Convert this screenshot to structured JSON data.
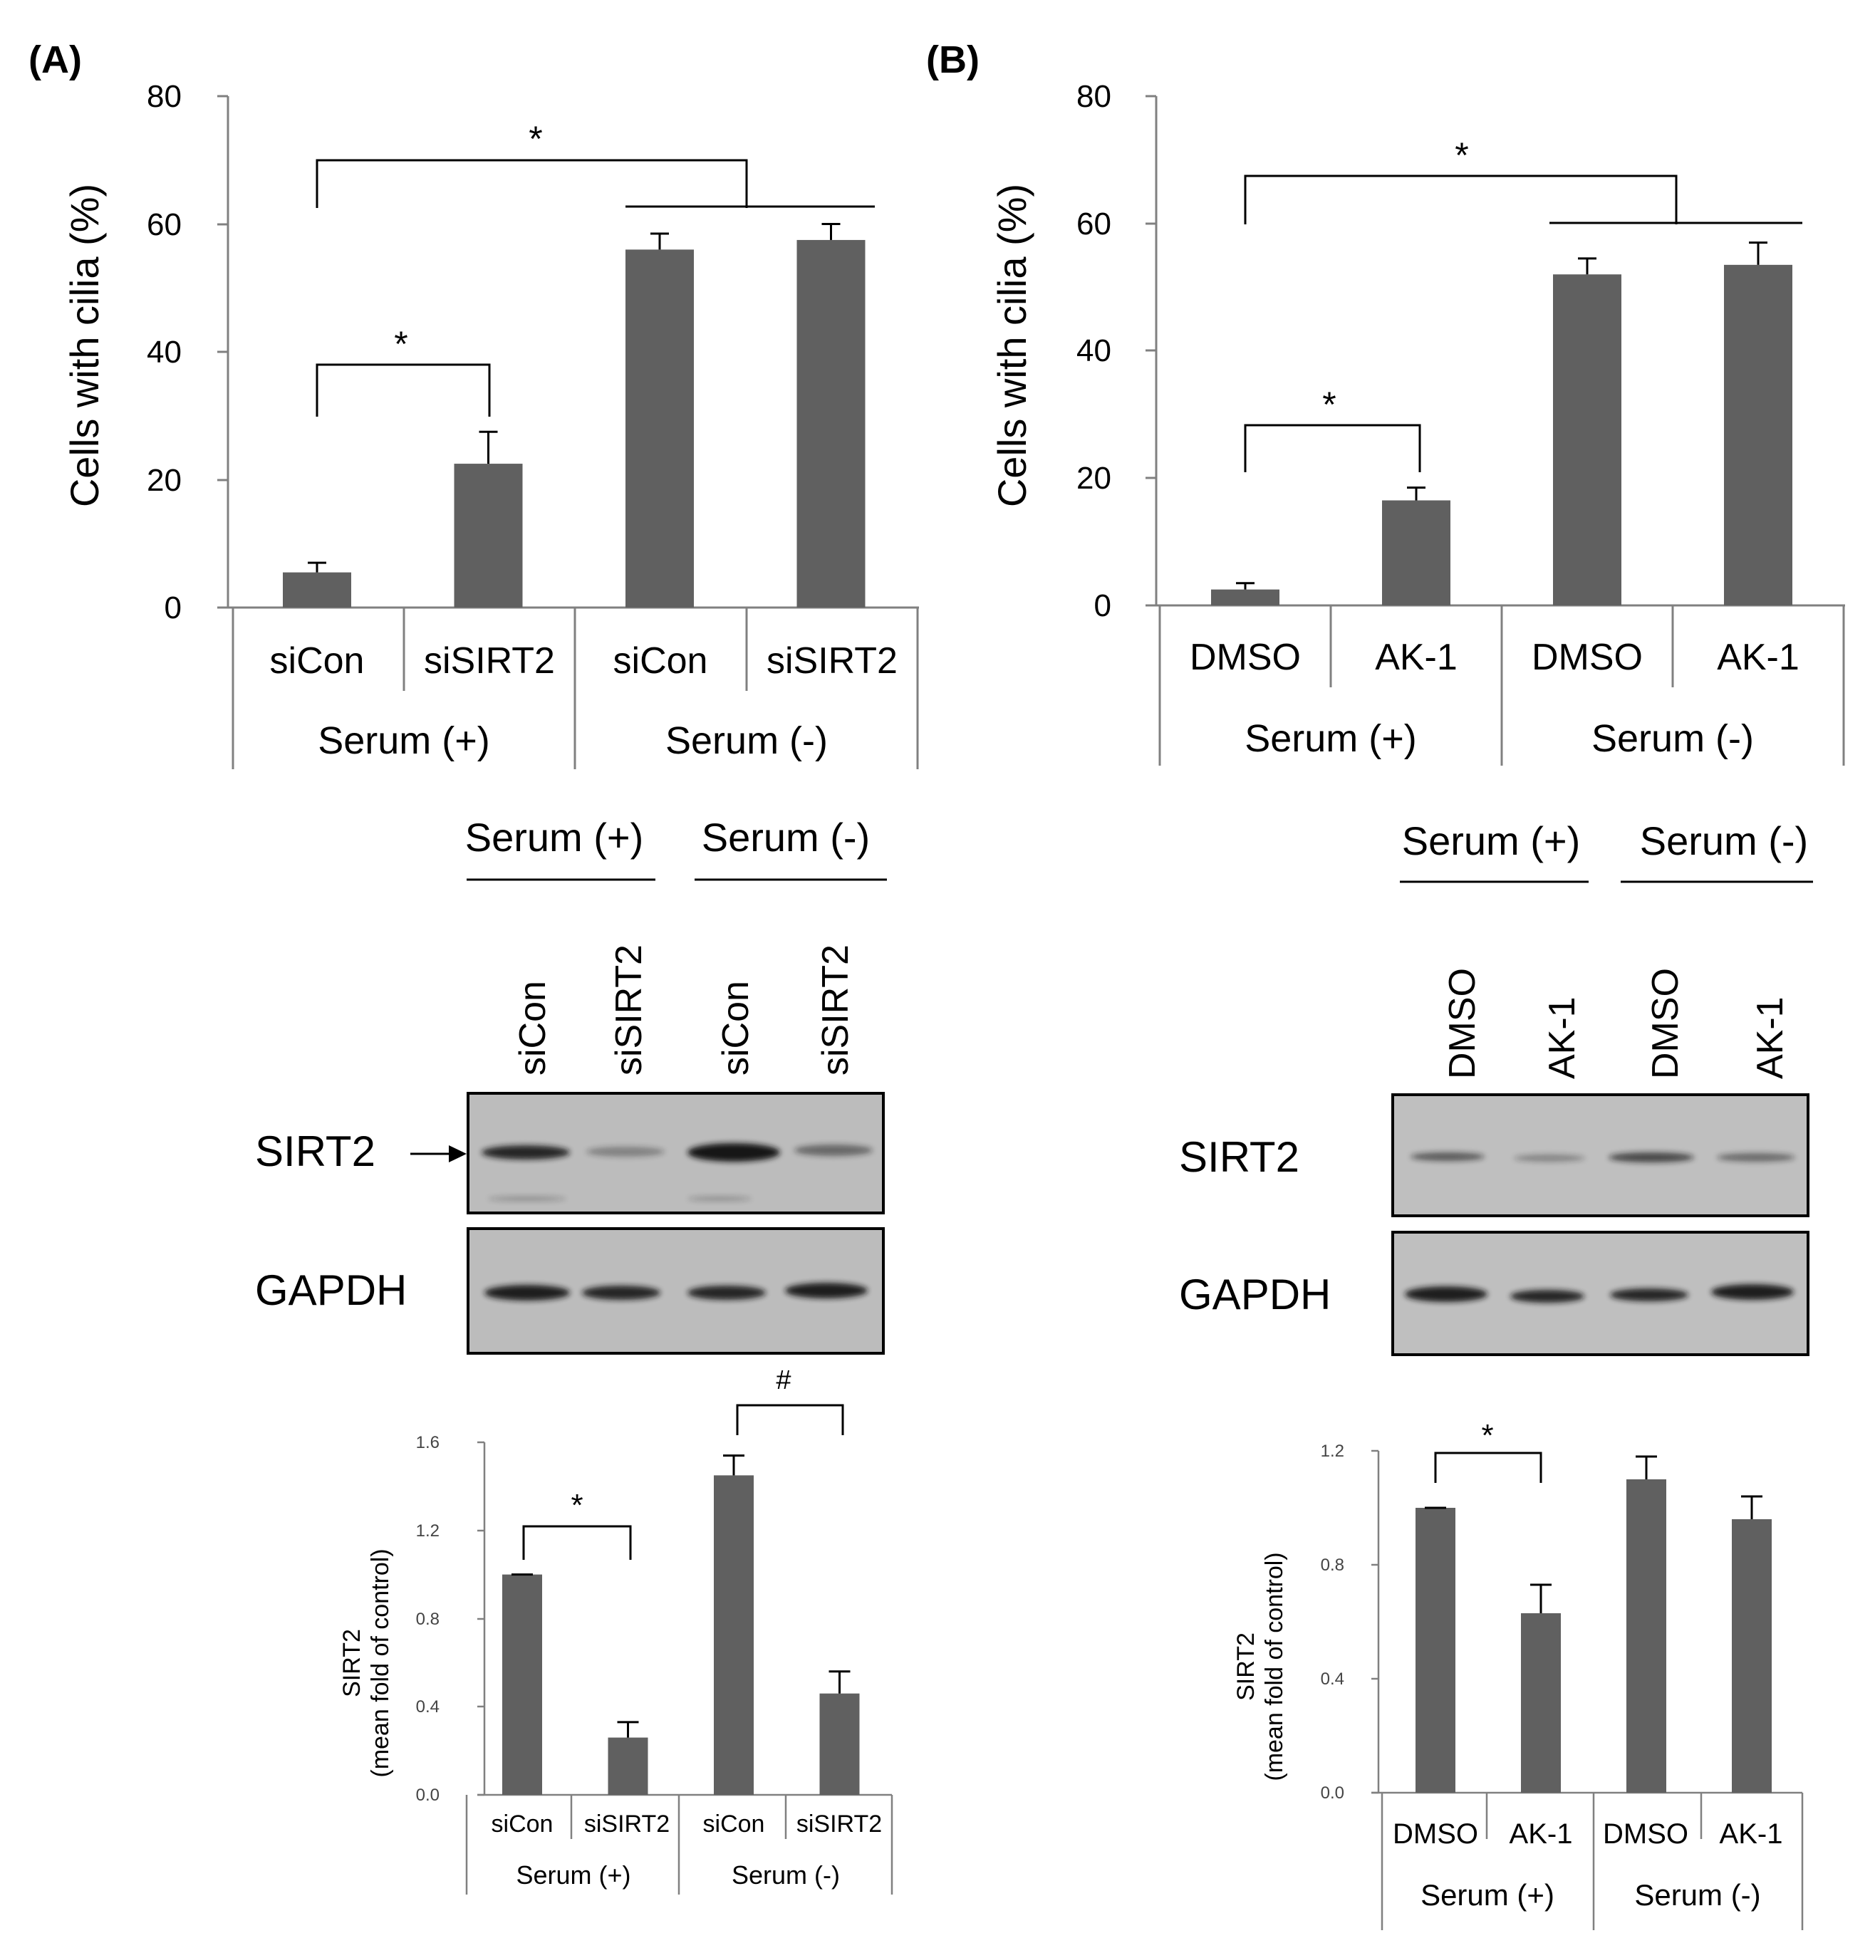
{
  "panels": [
    {
      "label": "(A)",
      "bar_chart": {
        "ylabel": "Cells with cilia (%)",
        "yticks": [
          "0",
          "20",
          "40",
          "60",
          "80"
        ],
        "categories": [
          "siCon",
          "siSIRT2",
          "siCon",
          "siSIRT2"
        ],
        "groups": [
          "Serum (+)",
          "Serum (-)"
        ],
        "sig_marks": [
          "*",
          "*"
        ]
      },
      "blot": {
        "group_labels": [
          "Serum (+)",
          "Serum (-)"
        ],
        "lane_labels": [
          "siCon",
          "siSIRT2",
          "siCon",
          "siSIRT2"
        ],
        "rows": [
          "SIRT2",
          "GAPDH"
        ]
      },
      "quant_chart": {
        "ylabel_line1": "SIRT2",
        "ylabel_line2": "(mean fold of control)",
        "yticks": [
          "0.0",
          "0.4",
          "0.8",
          "1.2",
          "1.6"
        ],
        "categories": [
          "siCon",
          "siSIRT2",
          "siCon",
          "siSIRT2"
        ],
        "groups": [
          "Serum (+)",
          "Serum (-)"
        ],
        "sig_marks": [
          "*",
          "#"
        ]
      }
    },
    {
      "label": "(B)",
      "bar_chart": {
        "ylabel": "Cells with cilia (%)",
        "yticks": [
          "0",
          "20",
          "40",
          "60",
          "80"
        ],
        "categories": [
          "DMSO",
          "AK-1",
          "DMSO",
          "AK-1"
        ],
        "groups": [
          "Serum (+)",
          "Serum (-)"
        ],
        "sig_marks": [
          "*",
          "*"
        ]
      },
      "blot": {
        "group_labels": [
          "Serum (+)",
          "Serum (-)"
        ],
        "lane_labels": [
          "DMSO",
          "AK-1",
          "DMSO",
          "AK-1"
        ],
        "rows": [
          "SIRT2",
          "GAPDH"
        ]
      },
      "quant_chart": {
        "ylabel_line1": "SIRT2",
        "ylabel_line2": "(mean fold of control)",
        "yticks": [
          "0.0",
          "0.4",
          "0.8",
          "1.2"
        ],
        "categories": [
          "DMSO",
          "AK-1",
          "DMSO",
          "AK-1"
        ],
        "groups": [
          "Serum (+)",
          "Serum (-)"
        ],
        "sig_marks": [
          "*"
        ]
      }
    }
  ],
  "chart_data": [
    {
      "type": "bar",
      "panel": "(A)",
      "categories": [
        "siCon",
        "siSIRT2",
        "siCon",
        "siSIRT2"
      ],
      "groups": [
        "Serum (+)",
        "Serum (-)"
      ],
      "values": [
        5.5,
        22.5,
        56,
        57.5
      ],
      "errors": [
        1.5,
        5,
        2.5,
        2.5
      ],
      "ylabel": "Cells with cilia (%)",
      "ylim": [
        0,
        80
      ],
      "bar_color": "#606060",
      "grid": false
    },
    {
      "type": "bar",
      "panel": "(A)",
      "categories": [
        "siCon",
        "siSIRT2",
        "siCon",
        "siSIRT2"
      ],
      "groups": [
        "Serum (+)",
        "Serum (-)"
      ],
      "values": [
        1.0,
        0.26,
        1.45,
        0.46
      ],
      "errors": [
        0.0,
        0.07,
        0.09,
        0.1
      ],
      "ylabel": "SIRT2 (mean fold of control)",
      "ylim": [
        0,
        1.6
      ],
      "bar_color": "#606060",
      "grid": false
    },
    {
      "type": "bar",
      "panel": "(B)",
      "categories": [
        "DMSO",
        "AK-1",
        "DMSO",
        "AK-1"
      ],
      "groups": [
        "Serum (+)",
        "Serum (-)"
      ],
      "values": [
        2.5,
        16.5,
        52,
        53.5
      ],
      "errors": [
        1,
        2,
        2.5,
        3.5
      ],
      "ylabel": "Cells with cilia (%)",
      "ylim": [
        0,
        80
      ],
      "bar_color": "#606060",
      "grid": false
    },
    {
      "type": "bar",
      "panel": "(B)",
      "categories": [
        "DMSO",
        "AK-1",
        "DMSO",
        "AK-1"
      ],
      "groups": [
        "Serum (+)",
        "Serum (-)"
      ],
      "values": [
        1.0,
        0.63,
        1.1,
        0.96
      ],
      "errors": [
        0.0,
        0.1,
        0.08,
        0.08
      ],
      "ylabel": "SIRT2 (mean fold of control)",
      "ylim": [
        0,
        1.2
      ],
      "bar_color": "#606060",
      "grid": false
    }
  ]
}
